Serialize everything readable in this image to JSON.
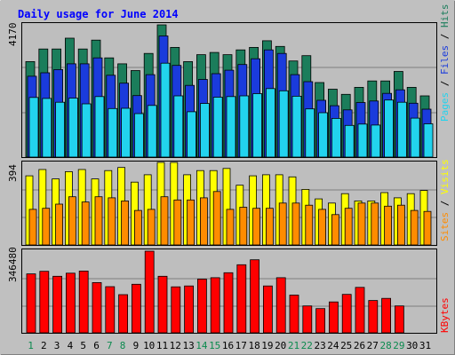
{
  "title": "Daily usage for June 2014",
  "colors": {
    "background": "#c0c0c0",
    "panel": "#bebebe",
    "title": "#0000ff",
    "hits": "#1b7d5b",
    "files": "#1a3bdc",
    "pages": "#22d3ee",
    "visits": "#ffff00",
    "sites": "#ff8c00",
    "kbytes": "#ff0000",
    "weekend_day_label": "#0b8a4e",
    "weekday_day_label": "#000000",
    "gridline": "#7f7f7f"
  },
  "chart_data": [
    {
      "type": "bar",
      "title": "Daily usage for June 2014",
      "panel": "hits-files-pages",
      "y_label_max": "4170",
      "ylim": [
        0,
        4170
      ],
      "grid": true,
      "legend": "right side vertical: Pages / Files / Hits",
      "legend_labels": [
        "Pages",
        "Files",
        "Hits"
      ],
      "categories": [
        "1",
        "2",
        "3",
        "4",
        "5",
        "6",
        "7",
        "8",
        "9",
        "10",
        "11",
        "12",
        "13",
        "14",
        "15",
        "16",
        "17",
        "18",
        "19",
        "20",
        "21",
        "22",
        "23",
        "24",
        "25",
        "26",
        "27",
        "28",
        "29",
        "30",
        "31"
      ],
      "series": [
        {
          "name": "Hits",
          "color": "#1b7d5b",
          "values": [
            3010,
            3410,
            3410,
            3750,
            3410,
            3690,
            3130,
            2940,
            2730,
            3270,
            4170,
            3460,
            3010,
            3230,
            3300,
            3230,
            3380,
            3460,
            3670,
            3490,
            3030,
            3200,
            2350,
            2140,
            1980,
            2200,
            2400,
            2400,
            2700,
            2200,
            1930
          ]
        },
        {
          "name": "Files",
          "color": "#1a3bdc",
          "values": [
            2550,
            2660,
            2760,
            2940,
            2940,
            3130,
            2580,
            2330,
            1940,
            2600,
            3820,
            2890,
            2260,
            2450,
            2630,
            2740,
            2920,
            3100,
            3380,
            3270,
            2600,
            2380,
            1790,
            1620,
            1490,
            1720,
            1770,
            2010,
            2120,
            1700,
            1510
          ]
        },
        {
          "name": "Pages",
          "color": "#22d3ee",
          "values": [
            1880,
            1850,
            1730,
            1860,
            1680,
            1910,
            1530,
            1540,
            1370,
            1630,
            2960,
            1930,
            1430,
            1690,
            1890,
            1910,
            1930,
            2000,
            2160,
            2090,
            1920,
            1520,
            1400,
            1220,
            1000,
            1040,
            1010,
            1800,
            1730,
            1230,
            1050
          ]
        }
      ]
    },
    {
      "type": "bar",
      "panel": "visits-sites",
      "y_label_max": "394",
      "ylim": [
        0,
        394
      ],
      "grid": true,
      "legend": "right side vertical: Sites / Visits",
      "legend_labels": [
        "Sites",
        "Visits"
      ],
      "categories": [
        "1",
        "2",
        "3",
        "4",
        "5",
        "6",
        "7",
        "8",
        "9",
        "10",
        "11",
        "12",
        "13",
        "14",
        "15",
        "16",
        "17",
        "18",
        "19",
        "20",
        "21",
        "22",
        "23",
        "24",
        "25",
        "26",
        "27",
        "28",
        "29",
        "30",
        "31"
      ],
      "series": [
        {
          "name": "Visits",
          "color": "#ffff00",
          "values": [
            330,
            360,
            315,
            350,
            360,
            315,
            355,
            370,
            300,
            335,
            394,
            394,
            335,
            355,
            355,
            365,
            285,
            330,
            335,
            335,
            325,
            265,
            220,
            200,
            245,
            210,
            210,
            250,
            225,
            245,
            260
          ]
        },
        {
          "name": "Sites",
          "color": "#ff8c00",
          "values": [
            170,
            175,
            195,
            230,
            205,
            230,
            225,
            210,
            165,
            170,
            230,
            215,
            215,
            225,
            255,
            170,
            180,
            175,
            175,
            200,
            200,
            190,
            170,
            145,
            175,
            200,
            200,
            185,
            190,
            165,
            160
          ]
        }
      ]
    },
    {
      "type": "bar",
      "panel": "kbytes",
      "y_label_max": "346480",
      "ylim": [
        0,
        346480
      ],
      "grid": true,
      "legend": "right side vertical: KBytes",
      "legend_labels": [
        "KBytes"
      ],
      "categories": [
        "1",
        "2",
        "3",
        "4",
        "5",
        "6",
        "7",
        "8",
        "9",
        "10",
        "11",
        "12",
        "13",
        "14",
        "15",
        "16",
        "17",
        "18",
        "19",
        "20",
        "21",
        "22",
        "23",
        "24",
        "25",
        "26",
        "27",
        "28",
        "29",
        "30",
        "31"
      ],
      "series": [
        {
          "name": "KBytes",
          "color": "#ff0000",
          "values": [
            250000,
            261000,
            240000,
            253000,
            262000,
            213000,
            196000,
            162000,
            206000,
            346480,
            240000,
            195000,
            199000,
            228000,
            234000,
            255000,
            289000,
            310000,
            199000,
            234000,
            160000,
            114000,
            103000,
            131000,
            163000,
            193000,
            137000,
            146000,
            114000,
            0,
            0
          ]
        }
      ]
    }
  ],
  "day_labels": [
    "1",
    "2",
    "3",
    "4",
    "5",
    "6",
    "7",
    "8",
    "9",
    "10",
    "11",
    "12",
    "13",
    "14",
    "15",
    "16",
    "17",
    "18",
    "19",
    "20",
    "21",
    "22",
    "23",
    "24",
    "25",
    "26",
    "27",
    "28",
    "29",
    "30",
    "31"
  ],
  "weekend_days": [
    1,
    7,
    8,
    14,
    15,
    21,
    22,
    28,
    29
  ]
}
